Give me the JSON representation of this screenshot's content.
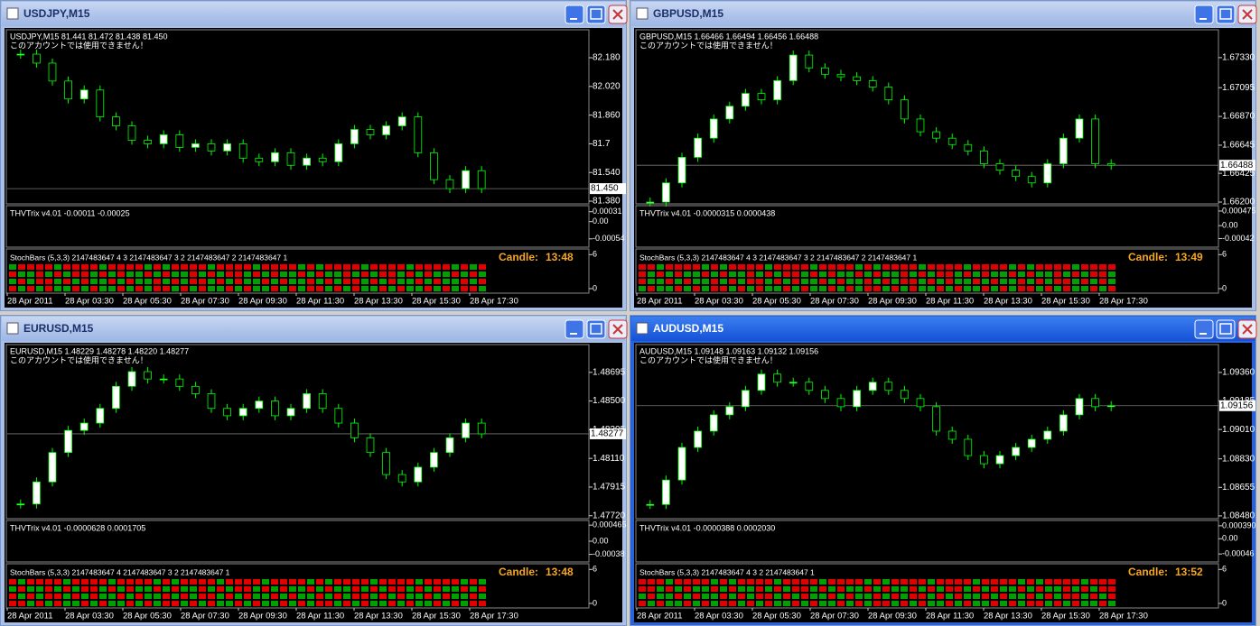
{
  "windows": [
    {
      "title": "USDJPY,M15",
      "header": "USDJPY,M15  81.441 81.472 81.438 81.450",
      "notice": "このアカウントでは使用できません！",
      "ylim": [
        81.365,
        82.336
      ],
      "price_ticks": [
        {
          "value": 82.18,
          "label": "82.180"
        },
        {
          "value": 82.02,
          "label": "82.020"
        },
        {
          "value": 81.86,
          "label": "81.860"
        },
        81.7,
        {
          "value": 81.54,
          "label": "81.540"
        },
        {
          "value": 81.38,
          "label": "81.380"
        }
      ],
      "current": {
        "value": 81.45,
        "label": "81.450"
      },
      "closes": [
        82.2,
        82.15,
        82.05,
        81.95,
        82.0,
        81.85,
        81.8,
        81.72,
        81.7,
        81.75,
        81.68,
        81.7,
        81.66,
        81.7,
        81.62,
        81.6,
        81.65,
        81.58,
        81.62,
        81.6,
        81.7,
        81.78,
        81.75,
        81.8,
        81.85,
        81.65,
        81.5,
        81.45,
        81.55,
        81.45
      ],
      "indicator": {
        "label": "THVTrix v4.01 -0.00011 -0.00025",
        "ylim": [
          -0.0008,
          0.0005
        ],
        "ticks": [
          0.00031,
          {
            "value": 0,
            "label": "0.00"
          },
          -0.00054
        ]
      },
      "stoch": {
        "label": "StochBars (5,3,3) 2147483647 4 3 2147483647 3 2 2147483647 2 2147483647 1",
        "ylim": [
          -0.8,
          7
        ],
        "ticks": [
          6,
          0
        ]
      },
      "candle": {
        "label": "Candle:",
        "time": "13:48"
      },
      "time_labels": [
        "28 Apr 2011",
        "28 Apr 03:30",
        "28 Apr 05:30",
        "28 Apr 07:30",
        "28 Apr 09:30",
        "28 Apr 11:30",
        "28 Apr 13:30",
        "28 Apr 15:30",
        "28 Apr 17:30"
      ]
    },
    {
      "title": "GBPUSD,M15",
      "header": "GBPUSD,M15  1.66466 1.66494 1.66456 1.66488",
      "notice": "このアカウントでは使用できません！",
      "ylim": [
        1.66186,
        1.67548
      ],
      "price_ticks": [
        {
          "value": 1.6733,
          "label": "1.67330"
        },
        1.67095,
        {
          "value": 1.6687,
          "label": "1.66870"
        },
        1.66645,
        1.66425,
        {
          "value": 1.662,
          "label": "1.66200"
        }
      ],
      "current": 1.66488,
      "closes": [
        1.662,
        1.6635,
        1.6655,
        1.667,
        1.6685,
        1.6695,
        1.6705,
        1.67,
        1.6715,
        1.6735,
        1.6725,
        1.672,
        1.6718,
        1.6715,
        1.671,
        1.67,
        1.6685,
        1.6675,
        1.667,
        1.6665,
        1.666,
        1.665,
        1.6645,
        1.664,
        1.6635,
        1.665,
        1.667,
        1.6685,
        1.665,
        1.66488
      ],
      "indicator": {
        "label": "THVTrix v4.01 -0.0000315 0.0000438",
        "ylim": [
          -0.0007,
          0.00065
        ],
        "ticks": [
          0.000475,
          {
            "value": 0,
            "label": "0.00"
          },
          -0.00042
        ]
      },
      "stoch": {
        "label": "StochBars (5,3,3) 2147483647 4 3 2147483647 3 2 2147483647 2 2147483647 1",
        "ylim": [
          -0.8,
          7
        ],
        "ticks": [
          6,
          0
        ]
      },
      "candle": {
        "label": "Candle:",
        "time": "13:49"
      },
      "time_labels": [
        "28 Apr 2011",
        "28 Apr 03:30",
        "28 Apr 05:30",
        "28 Apr 07:30",
        "28 Apr 09:30",
        "28 Apr 11:30",
        "28 Apr 13:30",
        "28 Apr 15:30",
        "28 Apr 17:30"
      ]
    },
    {
      "title": "EURUSD,M15",
      "header": "EURUSD,M15  1.48229 1.48278 1.48220 1.48277",
      "notice": "このアカウントでは使用できません！",
      "ylim": [
        1.477,
        1.48884
      ],
      "price_ticks": [
        1.48695,
        {
          "value": 1.485,
          "label": "1.48500"
        },
        1.48305,
        {
          "value": 1.4811,
          "label": "1.48110"
        },
        1.47915,
        {
          "value": 1.4772,
          "label": "1.47720"
        }
      ],
      "current": 1.48277,
      "closes": [
        1.478,
        1.4795,
        1.4815,
        1.483,
        1.4835,
        1.4845,
        1.486,
        1.487,
        1.4865,
        1.4865,
        1.486,
        1.4855,
        1.4845,
        1.484,
        1.4845,
        1.485,
        1.484,
        1.4845,
        1.4855,
        1.4845,
        1.4835,
        1.4825,
        1.4815,
        1.48,
        1.4795,
        1.4805,
        1.4815,
        1.4825,
        1.4835,
        1.48277
      ],
      "indicator": {
        "label": "THVTrix v4.01 -0.0000628 0.0001705",
        "ylim": [
          -0.0006,
          0.0006
        ],
        "ticks": [
          0.000465,
          {
            "value": 0,
            "label": "0.00"
          },
          -0.00038
        ]
      },
      "stoch": {
        "label": "StochBars (5,3,3) 2147483647 4 2147483647 3 2 2147483647 1",
        "ylim": [
          -0.8,
          7
        ],
        "ticks": [
          6,
          0
        ]
      },
      "candle": {
        "label": "Candle:",
        "time": "13:48"
      },
      "time_labels": [
        "28 Apr 2011",
        "28 Apr 03:30",
        "28 Apr 05:30",
        "28 Apr 07:30",
        "28 Apr 09:30",
        "28 Apr 11:30",
        "28 Apr 13:30",
        "28 Apr 15:30",
        "28 Apr 17:30"
      ]
    },
    {
      "title": "AUDUSD,M15",
      "header": "AUDUSD,M15  1.09148 1.09163 1.09132 1.09156",
      "notice": "このアカウントでは使用できません！",
      "ylim": [
        1.08463,
        1.09531
      ],
      "price_ticks": [
        {
          "value": 1.0936,
          "label": "1.09360"
        },
        1.09185,
        {
          "value": 1.0901,
          "label": "1.09010"
        },
        {
          "value": 1.0883,
          "label": "1.08830"
        },
        1.08655,
        {
          "value": 1.0848,
          "label": "1.08480"
        }
      ],
      "current": 1.09156,
      "closes": [
        1.0855,
        1.087,
        1.089,
        1.09,
        1.091,
        1.0915,
        1.0925,
        1.0935,
        1.093,
        1.093,
        1.0925,
        1.092,
        1.0915,
        1.0925,
        1.093,
        1.0925,
        1.092,
        1.0915,
        1.09,
        1.0895,
        1.0885,
        1.088,
        1.0885,
        1.089,
        1.0895,
        1.09,
        1.091,
        1.092,
        1.0915,
        1.09156
      ],
      "indicator": {
        "label": "THVTrix v4.01 -0.0000388 0.0002030",
        "ylim": [
          -0.0007,
          0.00055
        ],
        "ticks": [
          {
            "value": 0.00039,
            "label": "0.000390"
          },
          {
            "value": 0,
            "label": "0.00"
          },
          -0.00046
        ]
      },
      "stoch": {
        "label": "StochBars (5,3,3) 2147483647 4 3 2 2147483647 1",
        "ylim": [
          -0.8,
          7
        ],
        "ticks": [
          6,
          0
        ]
      },
      "candle": {
        "label": "Candle:",
        "time": "13:52"
      },
      "time_labels": [
        "28 Apr 2011",
        "28 Apr 03:30",
        "28 Apr 05:30",
        "28 Apr 07:30",
        "28 Apr 09:30",
        "28 Apr 11:30",
        "28 Apr 13:30",
        "28 Apr 15:30",
        "28 Apr 17:30"
      ]
    }
  ]
}
